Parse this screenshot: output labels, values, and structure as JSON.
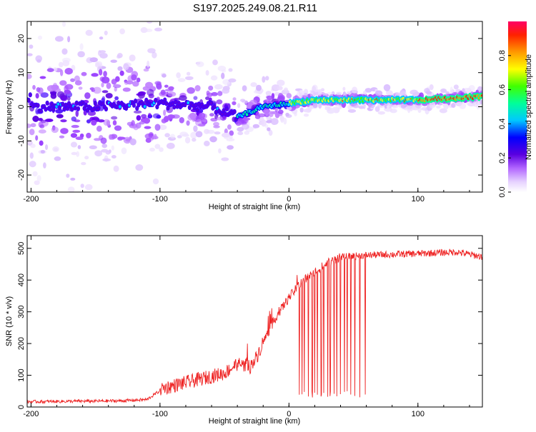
{
  "title": "S197.2025.249.08.21.R11",
  "chart_data": [
    {
      "type": "heatmap",
      "xlabel": "Height of straight line (km)",
      "ylabel": "Frequency (Hz)",
      "xlim": [
        -203,
        150
      ],
      "ylim": [
        -25,
        25
      ],
      "x_ticks": [
        -200,
        -100,
        0,
        100
      ],
      "y_ticks": [
        -20,
        -10,
        0,
        10,
        20
      ],
      "colorbar": {
        "label": "Normalized spectral amplitude",
        "range": [
          0,
          1
        ],
        "ticks": [
          0.0,
          0.2,
          0.4,
          0.6,
          0.8
        ]
      },
      "ridge": {
        "description_points": [
          [
            -200,
            0
          ],
          [
            -150,
            0
          ],
          [
            -100,
            1
          ],
          [
            -60,
            0
          ],
          [
            -40,
            -3
          ],
          [
            -20,
            0
          ],
          [
            0,
            1
          ],
          [
            20,
            2
          ],
          [
            50,
            2
          ],
          [
            100,
            2
          ],
          [
            150,
            3
          ]
        ]
      }
    },
    {
      "type": "line",
      "xlabel": "Height of straight line (km)",
      "ylabel": "SNR (10 * v/v)",
      "xlim": [
        -203,
        150
      ],
      "ylim": [
        0,
        540
      ],
      "x_ticks": [
        -200,
        -100,
        0,
        100
      ],
      "y_ticks": [
        0,
        100,
        200,
        300,
        400,
        500
      ],
      "series": [
        {
          "name": "SNR",
          "color": "#ee2222",
          "trend": [
            [
              -203,
              15
            ],
            [
              -130,
              18
            ],
            [
              -110,
              22
            ],
            [
              -100,
              50
            ],
            [
              -80,
              70
            ],
            [
              -60,
              90
            ],
            [
              -50,
              100
            ],
            [
              -40,
              130
            ],
            [
              -30,
              120
            ],
            [
              -25,
              150
            ],
            [
              -20,
              200
            ],
            [
              -10,
              280
            ],
            [
              0,
              340
            ],
            [
              10,
              390
            ],
            [
              20,
              420
            ],
            [
              30,
              450
            ],
            [
              40,
              470
            ],
            [
              60,
              475
            ],
            [
              100,
              480
            ],
            [
              130,
              485
            ],
            [
              150,
              470
            ]
          ],
          "dropouts_x": [
            8,
            10,
            12,
            15,
            18,
            20,
            22,
            25,
            27,
            30,
            32,
            35,
            37,
            40,
            43,
            45,
            48,
            51,
            55,
            59
          ]
        }
      ]
    }
  ]
}
